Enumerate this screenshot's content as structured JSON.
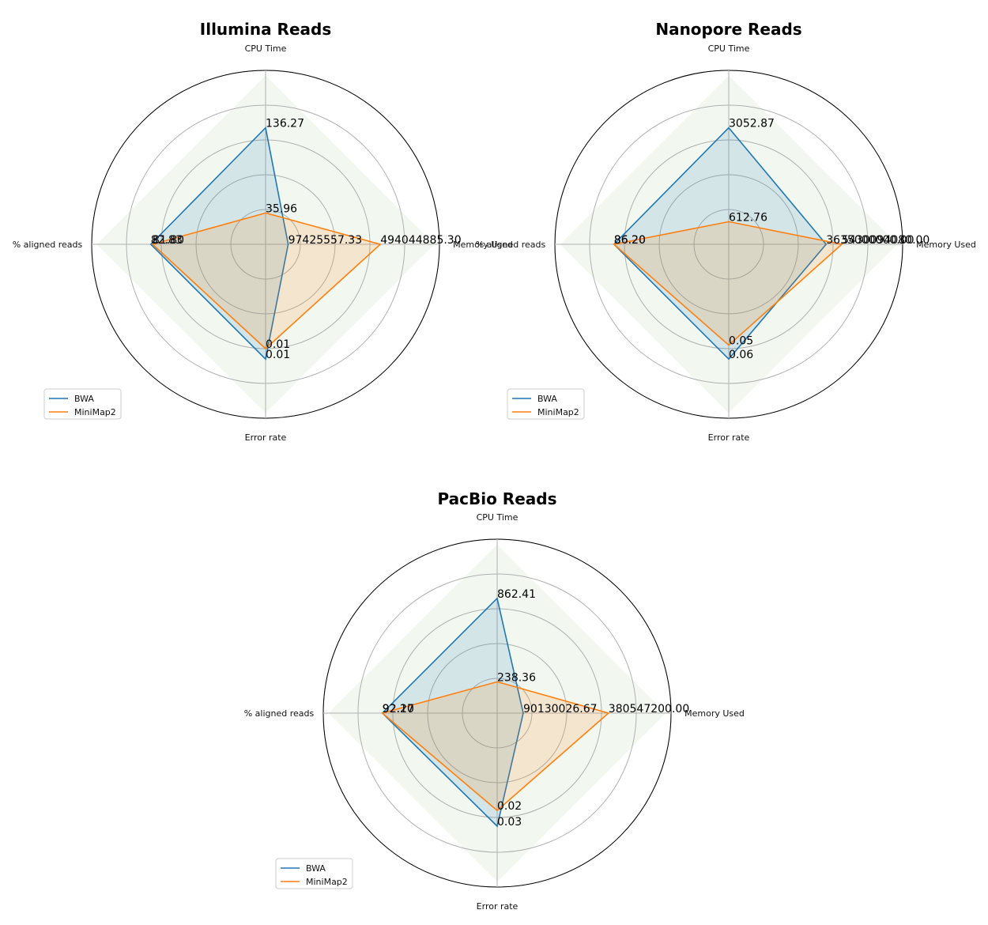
{
  "chart_data": [
    {
      "type": "radar",
      "title": "Illumina Reads",
      "axes": [
        "CPU Time",
        "Memory Used",
        "Error rate",
        "% aligned reads"
      ],
      "series": [
        {
          "name": "BWA",
          "values": [
            136.27,
            97425557.33,
            0.01,
            82.83
          ],
          "value_labels": [
            "136.27",
            "97425557.33",
            "0.01",
            "82.83"
          ],
          "normalized": [
            0.67,
            0.13,
            0.66,
            0.66
          ]
        },
        {
          "name": "MiniMap2",
          "values": [
            35.96,
            494044885.3,
            0.01,
            81.8
          ],
          "value_labels": [
            "35.96",
            "494044885.30",
            "0.01",
            "81.80"
          ],
          "normalized": [
            0.18,
            0.66,
            0.6,
            0.65
          ]
        }
      ]
    },
    {
      "type": "radar",
      "title": "Nanopore Reads",
      "axes": [
        "CPU Time",
        "Memory Used",
        "Error rate",
        "% aligned reads"
      ],
      "series": [
        {
          "name": "BWA",
          "values": [
            3052.87,
            3635000000,
            0.06,
            86.2
          ],
          "value_labels": [
            "3052.87",
            "3635000000.00",
            "0.06",
            "86.20"
          ],
          "normalized": [
            0.67,
            0.56,
            0.66,
            0.66
          ]
        },
        {
          "name": "MiniMap2",
          "values": [
            612.76,
            5430094080,
            0.05,
            86.2
          ],
          "value_labels": [
            "612.76",
            "5430094080.00",
            "0.05",
            "86.20"
          ],
          "normalized": [
            0.13,
            0.65,
            0.58,
            0.66
          ]
        }
      ]
    },
    {
      "type": "radar",
      "title": "PacBio Reads",
      "axes": [
        "CPU Time",
        "Memory Used",
        "Error rate",
        "% aligned reads"
      ],
      "series": [
        {
          "name": "BWA",
          "values": [
            862.41,
            90130026.67,
            0.03,
            92.17
          ],
          "value_labels": [
            "862.41",
            "90130026.67",
            "0.03",
            "92.17"
          ],
          "normalized": [
            0.66,
            0.15,
            0.65,
            0.66
          ]
        },
        {
          "name": "MiniMap2",
          "values": [
            238.36,
            380547200.0,
            0.02,
            92.2
          ],
          "value_labels": [
            "238.36",
            "380547200.00",
            "0.02",
            "92.20"
          ],
          "normalized": [
            0.18,
            0.64,
            0.56,
            0.66
          ]
        }
      ]
    }
  ],
  "colors": {
    "BWA": "#1f77b4",
    "MiniMap2": "#ff7f0e",
    "background_diamond": "#eaf4e6",
    "grid": "#b0b0b0"
  },
  "legend": {
    "placement": "lower-left",
    "entries": [
      "BWA",
      "MiniMap2"
    ]
  }
}
